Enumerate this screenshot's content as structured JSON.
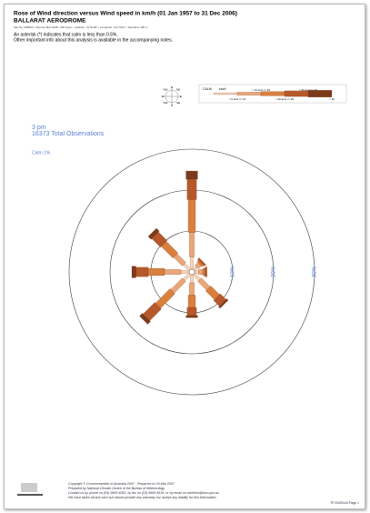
{
  "header": {
    "title": "Rose of Wind direction versus Wind speed in km/h (01 Jan 1957 to 31 Dec 2006)",
    "station": "BALLARAT AERODROME",
    "site_info": "Site No: 089002 • Opened Mar 1908 • Still Open • Latitude: -37.5128° • Longitude: 143.7911° • Elevation 435 m",
    "note1": "An asterisk (*) indicates that calm is less than 0.5%.",
    "note2": "Other important info about this analysis is available in the accompanying notes."
  },
  "chart_data": {
    "type": "windrose",
    "time": "3 pm",
    "observations": "16373 Total Observations",
    "calm_label": "Calm 1%",
    "categories": [
      "N",
      "NE",
      "E",
      "SE",
      "S",
      "SW",
      "W",
      "NW"
    ],
    "legend_title": "km/h",
    "legend_calm": "CALM",
    "series": [
      {
        "name": "> 0 and <= 10",
        "color": "#f6d3b8",
        "values": [
          3,
          1,
          1,
          2,
          2,
          2,
          2,
          2
        ]
      },
      {
        "name": "> 10 and <= 20",
        "color": "#e8a77a",
        "values": [
          6,
          1,
          1,
          3,
          3,
          4,
          4,
          3
        ]
      },
      {
        "name": "> 20 and <= 30",
        "color": "#d9803f",
        "values": [
          8,
          0.5,
          0.5,
          3,
          3,
          5,
          4,
          4
        ]
      },
      {
        "name": "> 30 and <= 40",
        "color": "#b5582a",
        "values": [
          5,
          0.5,
          0.5,
          2,
          2,
          4,
          3,
          3
        ]
      },
      {
        "name": "> 40",
        "color": "#7a3a1c",
        "values": [
          2,
          0,
          0,
          0.5,
          0.5,
          1,
          1,
          1
        ]
      }
    ],
    "rlim": [
      0,
      30
    ],
    "rticks": [
      {
        "value": 10,
        "label": "10%"
      },
      {
        "value": 20,
        "label": "20%"
      },
      {
        "value": 30,
        "label": "30%"
      }
    ]
  },
  "footer": {
    "copyright": "Copyright © Commonwealth of Australia 2007 . Prepared on 29 Mar 2007",
    "prepared": "Prepared by National Climate Centre of the Bureau of Meteorology",
    "contact": "Contact us by phone on (03) 9669 4082, by fax on (03) 9669 4515, or by email on webclim@bom.gov.au",
    "disclaimer": "We have taken all due care but cannot provide any warranty nor accept any liability for this information.",
    "page": "TF21W0118 Page 1"
  }
}
